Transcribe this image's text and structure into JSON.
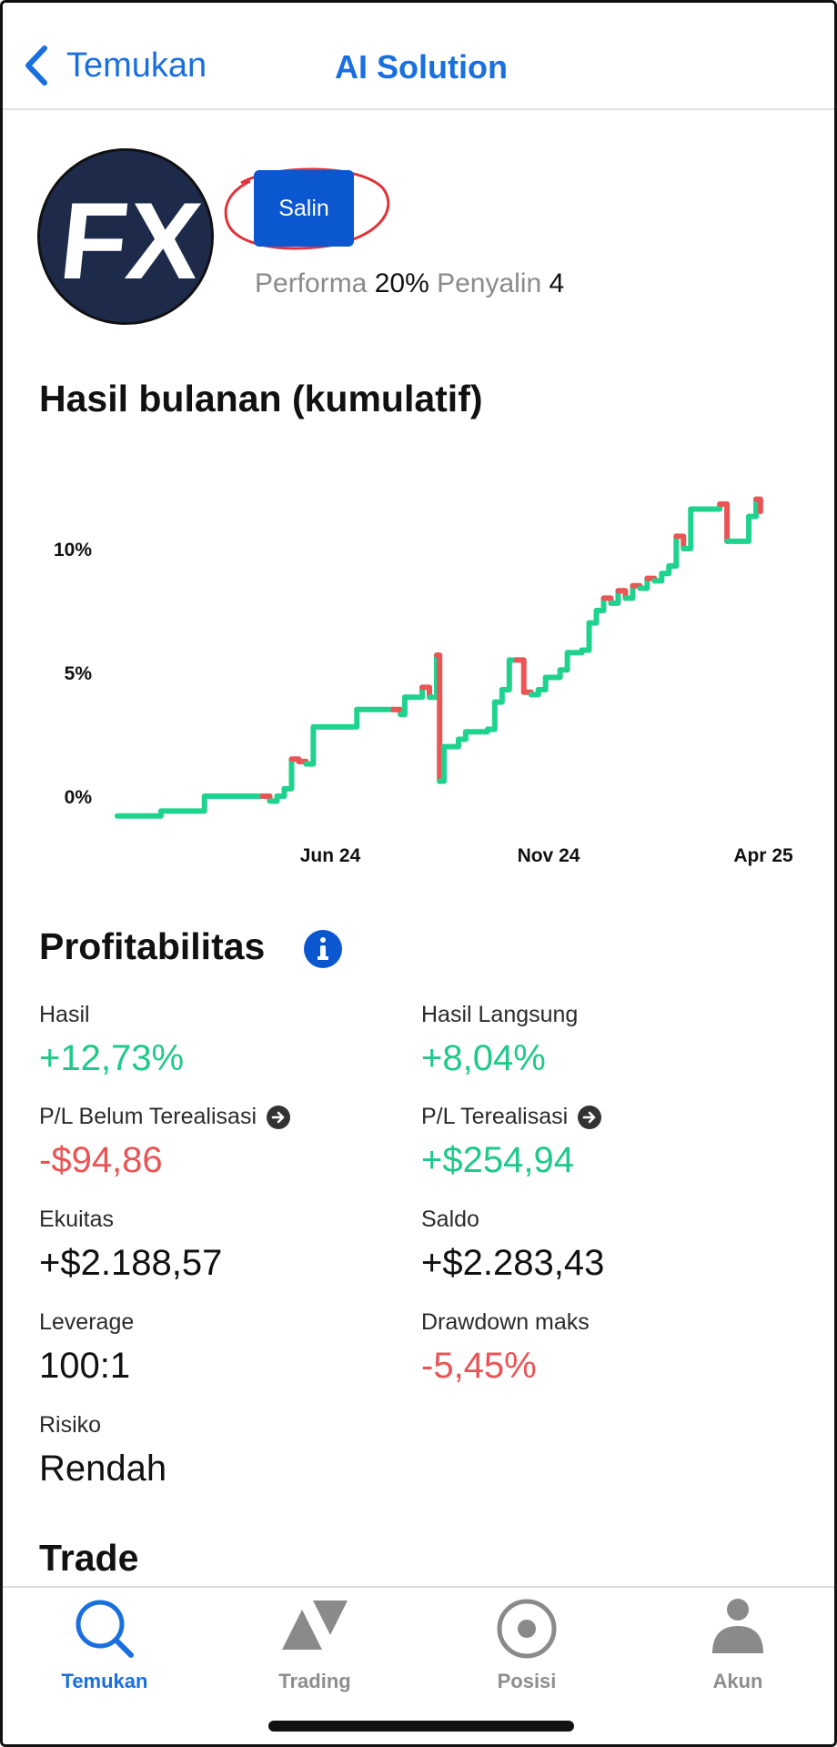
{
  "header": {
    "back_label": "Temukan",
    "title": "AI Solution"
  },
  "profile": {
    "avatar_text": "FX",
    "copy_button": "Salin",
    "performance_label": "Performa",
    "performance_value": "20%",
    "copiers_label": "Penyalin",
    "copiers_value": "4"
  },
  "monthly": {
    "title": "Hasil bulanan (kumulatif)"
  },
  "chart_data": {
    "type": "line",
    "title": "",
    "x_ticks": [
      "Jun 24",
      "Nov 24",
      "Apr 25"
    ],
    "y_ticks": [
      "0%",
      "5%",
      "10%"
    ],
    "ylim": [
      -1,
      13
    ],
    "colors": {
      "up": "#1fd38f",
      "down": "#ea5455"
    },
    "series": [
      {
        "values": [
          [
            0,
            -0.8
          ],
          [
            3,
            -0.6
          ],
          [
            6,
            0.0
          ],
          [
            10,
            0.0
          ],
          [
            10.5,
            -0.2
          ],
          [
            11,
            0.0
          ],
          [
            11.5,
            0.3
          ],
          [
            12,
            1.5
          ],
          [
            12.5,
            1.4
          ],
          [
            13,
            1.3
          ],
          [
            13.5,
            2.8
          ],
          [
            16,
            2.8
          ],
          [
            16.5,
            3.5
          ],
          [
            19,
            3.5
          ],
          [
            19.5,
            3.3
          ],
          [
            19.8,
            4.0
          ],
          [
            20.5,
            4.0
          ],
          [
            21,
            4.4
          ],
          [
            21.5,
            4.0
          ],
          [
            22,
            5.7
          ],
          [
            22.2,
            0.6
          ],
          [
            22.5,
            2.0
          ],
          [
            23,
            2.0
          ],
          [
            23.5,
            2.3
          ],
          [
            24,
            2.6
          ],
          [
            25,
            2.6
          ],
          [
            25.5,
            2.7
          ],
          [
            26,
            3.8
          ],
          [
            26.5,
            4.3
          ],
          [
            27,
            5.5
          ],
          [
            27.5,
            5.5
          ],
          [
            28,
            4.2
          ],
          [
            28.5,
            4.1
          ],
          [
            29,
            4.3
          ],
          [
            29.5,
            4.8
          ],
          [
            30,
            4.8
          ],
          [
            30.5,
            5.1
          ],
          [
            31,
            5.8
          ],
          [
            32,
            5.9
          ],
          [
            32.5,
            7.0
          ],
          [
            33,
            7.5
          ],
          [
            33.5,
            8.0
          ],
          [
            34,
            7.8
          ],
          [
            34.5,
            8.3
          ],
          [
            35,
            8.0
          ],
          [
            35.5,
            8.5
          ],
          [
            36,
            8.4
          ],
          [
            36.5,
            8.8
          ],
          [
            37,
            8.7
          ],
          [
            37.5,
            9.0
          ],
          [
            38,
            9.3
          ],
          [
            38.5,
            10.5
          ],
          [
            39,
            10.0
          ],
          [
            39.5,
            11.6
          ],
          [
            41,
            11.6
          ],
          [
            41.5,
            11.8
          ],
          [
            42,
            10.3
          ],
          [
            43,
            10.3
          ],
          [
            43.5,
            11.3
          ],
          [
            44,
            12.0
          ],
          [
            44.3,
            11.5
          ]
        ]
      }
    ]
  },
  "profitability": {
    "title": "Profitabilitas",
    "items": [
      {
        "label": "Hasil",
        "value": "+12,73%",
        "tone": "pos"
      },
      {
        "label": "Hasil Langsung",
        "value": "+8,04%",
        "tone": "pos"
      },
      {
        "label": "P/L Belum Terealisasi",
        "value": "-$94,86",
        "tone": "neg"
      },
      {
        "label": "P/L Terealisasi",
        "value": "+$254,94",
        "tone": "pos"
      },
      {
        "label": "Ekuitas",
        "value": "+$2.188,57",
        "tone": "neu"
      },
      {
        "label": "Saldo",
        "value": "+$2.283,43",
        "tone": "neu"
      },
      {
        "label": "Leverage",
        "value": "100:1",
        "tone": "neu"
      },
      {
        "label": "Drawdown maks",
        "value": "-5,45%",
        "tone": "neg"
      },
      {
        "label": "Risiko",
        "value": "Rendah",
        "tone": "neu"
      }
    ]
  },
  "trade": {
    "title": "Trade"
  },
  "tabs": [
    {
      "label": "Temukan",
      "icon": "search-icon",
      "active": true
    },
    {
      "label": "Trading",
      "icon": "trading-icon",
      "active": false
    },
    {
      "label": "Posisi",
      "icon": "position-icon",
      "active": false
    },
    {
      "label": "Akun",
      "icon": "account-icon",
      "active": false
    }
  ],
  "colors": {
    "accent": "#1a6fe0",
    "button": "#0b57d0",
    "positive": "#1ec98a",
    "negative": "#ea5455"
  }
}
